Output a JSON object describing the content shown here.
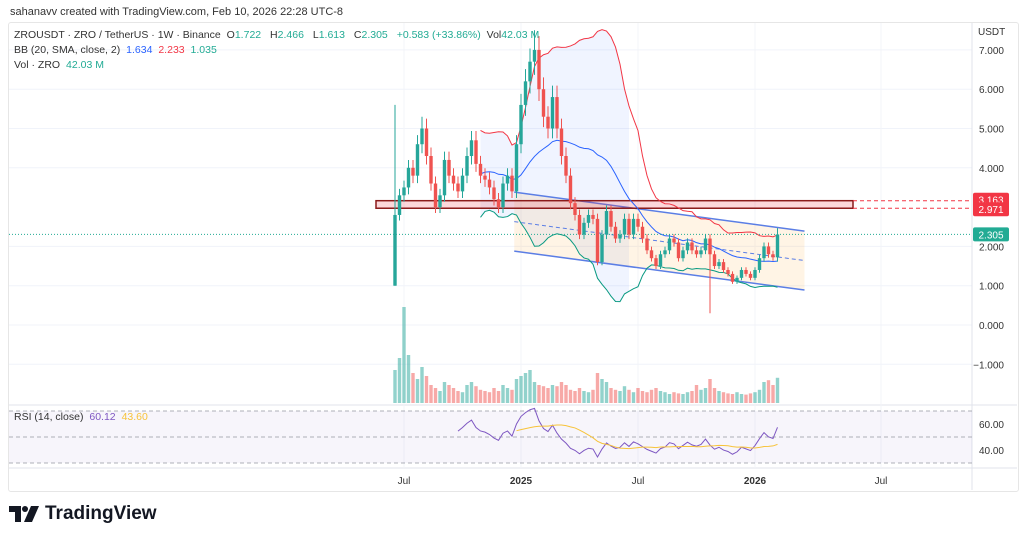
{
  "credit": "sahanavv created with TradingView.com, Feb 10, 2026 22:28 UTC-8",
  "legend": {
    "symbol": "ZROUSDT · ZRO / TetherUS · 1W · Binance",
    "o_label": "O",
    "o": "1.722",
    "h_label": "H",
    "h": "2.466",
    "l_label": "L",
    "l": "1.613",
    "c_label": "C",
    "c": "2.305",
    "change": "+0.583 (+33.86%)",
    "vol_label": "Vol",
    "vol": "42.03 M",
    "bb_label": "BB (20, SMA, close, 2)",
    "bb_basis": "1.634",
    "bb_upper": "2.233",
    "bb_lower": "1.035",
    "volume_label": "Vol · ZRO",
    "volume_value": "42.03 M",
    "rsi_label": "RSI (14, close)",
    "rsi_value": "60.12",
    "rsi_ma": "43.60"
  },
  "price_axis_unit": "USDT",
  "brand": "TradingView",
  "colors": {
    "up": "#26a69a",
    "down": "#ef5350",
    "bb_basis": "#2962ff",
    "bb_upper": "#f23645",
    "bb_lower": "#089981",
    "rsi": "#7e57c2",
    "rsi_ma": "#f7c33a",
    "zone": "#f23645",
    "channel": "#5b7ee5",
    "last_price": "#22ab94"
  },
  "chart_data": {
    "type": "candlestick",
    "interval": "1W",
    "first_open": 1.0,
    "close": [
      2.8,
      3.3,
      3.5,
      4.0,
      3.8,
      4.6,
      5.0,
      4.3,
      3.6,
      3.0,
      3.3,
      4.2,
      3.8,
      3.6,
      3.4,
      3.8,
      4.3,
      4.7,
      4.1,
      3.8,
      3.7,
      3.5,
      3.2,
      3.0,
      3.6,
      3.8,
      3.4,
      4.6,
      5.6,
      6.2,
      6.7,
      7.0,
      6.0,
      5.3,
      5.0,
      5.8,
      5.0,
      4.3,
      3.8,
      3.1,
      2.8,
      2.3,
      2.6,
      2.8,
      2.7,
      1.6,
      2.3,
      2.9,
      2.5,
      2.2,
      2.3,
      2.7,
      2.3,
      2.7,
      2.5,
      2.2,
      1.9,
      1.7,
      1.5,
      1.8,
      1.9,
      2.2,
      2.1,
      1.7,
      1.9,
      2.1,
      1.9,
      1.8,
      1.9,
      2.2,
      1.8,
      1.5,
      1.6,
      1.4,
      1.3,
      1.1,
      1.2,
      1.4,
      1.3,
      1.2,
      1.4,
      1.7,
      2.0,
      1.8,
      1.722,
      2.305
    ],
    "high_overrides": {
      "0": 5.6,
      "6": 5.3,
      "31": 7.5,
      "85": 2.466
    },
    "low_overrides": {
      "0": 1.0,
      "70": 0.3,
      "85": 1.613
    },
    "volume_millions": [
      55,
      75,
      160,
      80,
      50,
      40,
      60,
      45,
      30,
      25,
      20,
      35,
      30,
      25,
      20,
      18,
      30,
      35,
      28,
      22,
      20,
      18,
      25,
      20,
      30,
      25,
      22,
      40,
      45,
      50,
      55,
      35,
      30,
      28,
      25,
      30,
      28,
      35,
      30,
      22,
      20,
      25,
      20,
      18,
      22,
      50,
      40,
      35,
      25,
      22,
      20,
      28,
      22,
      18,
      25,
      20,
      18,
      22,
      25,
      20,
      18,
      15,
      18,
      16,
      15,
      18,
      20,
      30,
      22,
      25,
      40,
      25,
      20,
      18,
      16,
      15,
      18,
      15,
      14,
      16,
      18,
      22,
      35,
      38,
      30,
      42.03
    ],
    "price_ticks": [
      "7.000",
      "6.000",
      "5.000",
      "4.000",
      "2.000",
      "1.000",
      "0.000",
      "−1.000"
    ],
    "price_tick_values": [
      7,
      6,
      5,
      4,
      2,
      1,
      0,
      -1
    ],
    "rsi_ticks": [
      "60.00",
      "40.00"
    ],
    "rsi_tick_values": [
      60,
      40
    ],
    "x_ticks": [
      {
        "label": "Jul",
        "week": 2
      },
      {
        "label": "2025",
        "week": 28
      },
      {
        "label": "Jul",
        "week": 54
      },
      {
        "label": "2026",
        "week": 80
      },
      {
        "label": "Jul",
        "week": 108
      }
    ],
    "resistance_zone": {
      "low": 2.971,
      "high": 3.163,
      "low_label": "2.971",
      "high_label": "3.163"
    },
    "last_price": {
      "value": 2.305,
      "label": "2.305"
    },
    "channel": {
      "upper": [
        [
          26.5,
          3.38
        ],
        [
          91,
          2.39
        ]
      ],
      "lower": [
        [
          26.5,
          1.88
        ],
        [
          91,
          0.89
        ]
      ]
    },
    "bollinger": {
      "period": 20,
      "mult": 2
    },
    "rsi": {
      "period": 14,
      "ma_period": 14,
      "levels": [
        70,
        50,
        30
      ]
    }
  }
}
